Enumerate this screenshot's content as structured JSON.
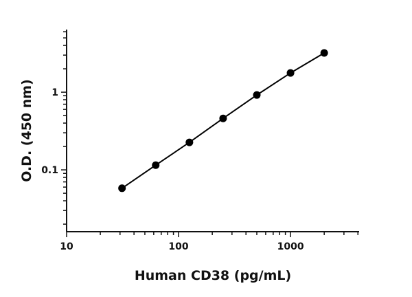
{
  "chart_data": {
    "type": "line",
    "title": "",
    "xlabel": "Human CD38 (pg/mL)",
    "ylabel": "O.D. (450 nm)",
    "xscale": "log",
    "yscale": "log",
    "xlim": [
      10,
      4100
    ],
    "ylim": [
      0.016,
      6.4
    ],
    "xticks": [
      10,
      100,
      1000
    ],
    "xtick_labels": [
      "10",
      "100",
      "1000"
    ],
    "yticks": [
      0.1,
      1
    ],
    "ytick_labels": [
      "0.1",
      "1"
    ],
    "grid": false,
    "series": [
      {
        "name": "Human CD38",
        "x": [
          31.25,
          62.5,
          125,
          250,
          500,
          1000,
          2000
        ],
        "y": [
          0.058,
          0.115,
          0.226,
          0.46,
          0.92,
          1.77,
          3.2
        ],
        "color": "#000000",
        "marker": "circle"
      }
    ]
  }
}
